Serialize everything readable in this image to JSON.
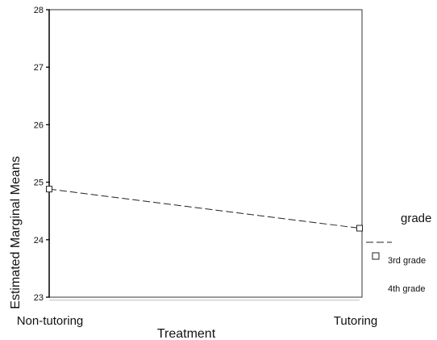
{
  "chart_data": {
    "type": "line",
    "xlabel": "Treatment",
    "ylabel": "Estimated Marginal Means",
    "categories": [
      "Non-tutoring",
      "Tutoring"
    ],
    "ylim": [
      23,
      28
    ],
    "yticks": [
      "23",
      "24",
      "25",
      "26",
      "27",
      "28"
    ],
    "grid": false,
    "legend": {
      "title": "grade",
      "placement": "right",
      "entries": [
        "3rd grade",
        "4th grade"
      ]
    },
    "series": [
      {
        "name": "3rd grade",
        "values": [
          24.88,
          24.2
        ],
        "marker": "square",
        "line": "dashed",
        "color": "#222222"
      },
      {
        "name": "4th grade",
        "values": [
          22.95,
          22.95
        ],
        "marker": "none",
        "line": "solid",
        "color": "#c8c8c8"
      }
    ]
  }
}
